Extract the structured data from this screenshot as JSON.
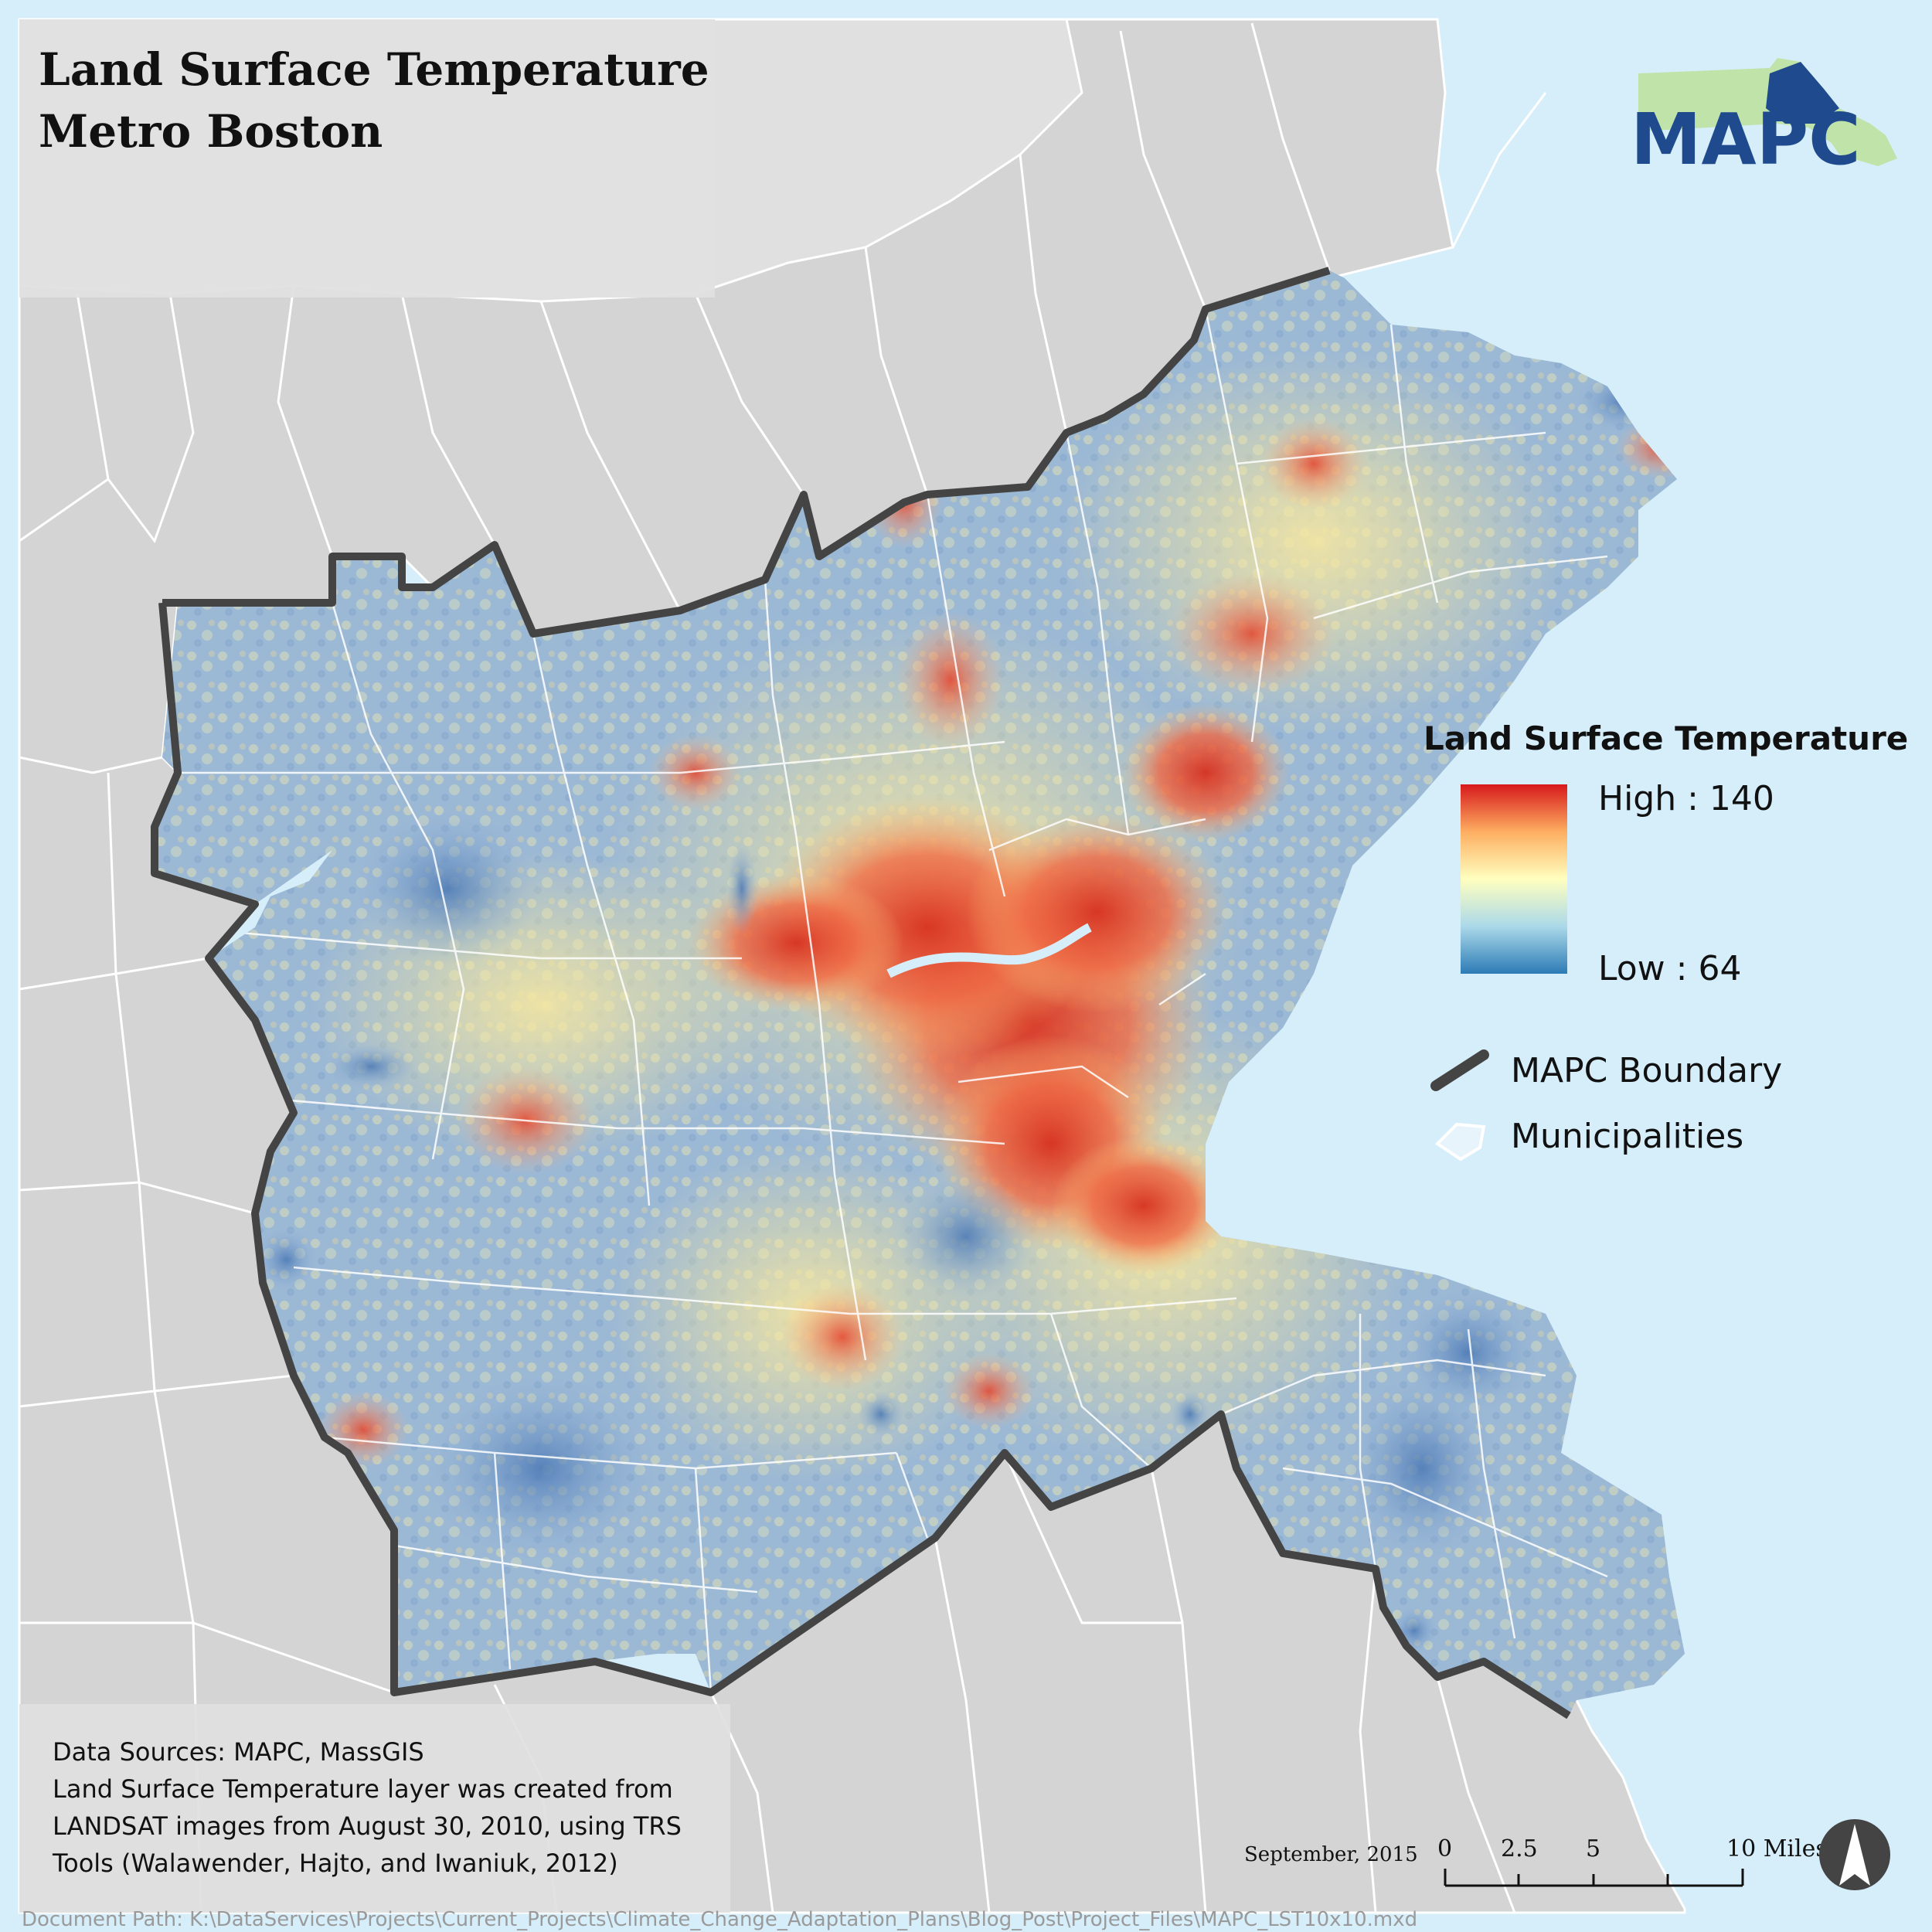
{
  "title": {
    "line1": "Land Surface Temperature",
    "line2": "Metro Boston"
  },
  "logo": {
    "text": "MAPC"
  },
  "legend": {
    "title": "Land Surface Temperature",
    "high_label": "High : 140",
    "low_label": "Low : 64",
    "boundary_label": "MAPC Boundary",
    "municipalities_label": "Municipalities",
    "ramp_colors": [
      "#d7191c",
      "#fdae61",
      "#ffffbf",
      "#abd9e9",
      "#2c7bb6"
    ]
  },
  "sources": {
    "line1": "Data Sources: MAPC, MassGIS",
    "line2": "Land Surface Temperature layer was created from",
    "line3": "LANDSAT images from August 30, 2010, using TRS",
    "line4": "Tools (Walawender, Hajto, and Iwaniuk, 2012)"
  },
  "date": "September, 2015",
  "scale_bar": {
    "ticks": [
      "0",
      "2.5",
      "5",
      "10 Miles"
    ]
  },
  "document_path": "Document Path: K:\\DataServices\\Projects\\Current_Projects\\Climate_Change_Adaptation_Plans\\Blog_Post\\Project_Files\\MAPC_LST10x10.mxd",
  "colors": {
    "ocean": "#d6eefa",
    "land_outside": "#d4d4d4",
    "land_outside_nh": "#e0e0e0",
    "boundary": "#444444",
    "hot": "#d7301f",
    "cool": "#5b86c0",
    "neutral": "#f2eeb0"
  },
  "icons": {
    "north_arrow": "north-arrow-icon",
    "ma_state": "massachusetts-state-icon"
  }
}
